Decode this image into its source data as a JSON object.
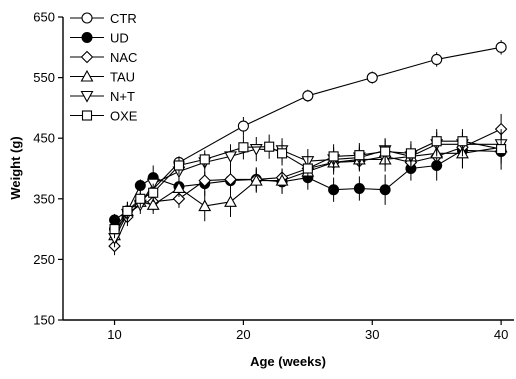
{
  "chart_data": {
    "type": "line",
    "title": "",
    "xlabel": "Age (weeks)",
    "ylabel": "Weight (g)",
    "xlim": [
      6,
      41
    ],
    "ylim": [
      150,
      650
    ],
    "xticks": [
      10,
      20,
      30,
      40
    ],
    "yticks": [
      150,
      250,
      350,
      450,
      550,
      650
    ],
    "grid": false,
    "legend_position": "top-left",
    "series": [
      {
        "name": "CTR",
        "marker": "circle-open",
        "x": [
          10,
          15,
          20,
          25,
          30,
          35,
          40
        ],
        "y": [
          300,
          410,
          470,
          520,
          550,
          580,
          600
        ],
        "err": [
          15,
          10,
          15,
          10,
          10,
          12,
          12
        ]
      },
      {
        "name": "UD",
        "marker": "circle-filled",
        "x": [
          10,
          11,
          12,
          13,
          15,
          17,
          19,
          21,
          23,
          25,
          27,
          29,
          31,
          33,
          35,
          37,
          40
        ],
        "y": [
          315,
          330,
          372,
          385,
          370,
          375,
          380,
          382,
          378,
          385,
          365,
          367,
          365,
          400,
          405,
          430,
          428
        ],
        "err": [
          10,
          15,
          10,
          20,
          15,
          20,
          20,
          20,
          20,
          20,
          20,
          20,
          25,
          20,
          25,
          30,
          30
        ]
      },
      {
        "name": "NAC",
        "marker": "diamond-open",
        "x": [
          10,
          11,
          12,
          13,
          15,
          17,
          19,
          21,
          23,
          25,
          27,
          29,
          31,
          33,
          35,
          37,
          40
        ],
        "y": [
          272,
          320,
          345,
          345,
          350,
          380,
          382,
          382,
          385,
          400,
          410,
          412,
          420,
          410,
          420,
          435,
          465
        ],
        "err": [
          15,
          15,
          15,
          15,
          15,
          15,
          15,
          15,
          15,
          20,
          15,
          15,
          15,
          15,
          20,
          20,
          25
        ]
      },
      {
        "name": "TAU",
        "marker": "triangle-up-open",
        "x": [
          10,
          11,
          12,
          13,
          15,
          17,
          19,
          21,
          23,
          25,
          27,
          29,
          31,
          33,
          35,
          37,
          40
        ],
        "y": [
          290,
          330,
          345,
          340,
          368,
          338,
          345,
          380,
          380,
          395,
          410,
          415,
          415,
          420,
          425,
          425,
          435
        ],
        "err": [
          15,
          15,
          15,
          15,
          15,
          25,
          25,
          20,
          20,
          20,
          20,
          20,
          20,
          20,
          20,
          25,
          25
        ]
      },
      {
        "name": "N+T",
        "marker": "triangle-down-open",
        "x": [
          10,
          11,
          12,
          13,
          15,
          17,
          19,
          21,
          23,
          25,
          27,
          29,
          31,
          33,
          35,
          37,
          40
        ],
        "y": [
          285,
          325,
          340,
          375,
          395,
          410,
          420,
          432,
          430,
          412,
          415,
          418,
          430,
          420,
          440,
          440,
          440
        ],
        "err": [
          15,
          15,
          15,
          15,
          15,
          15,
          20,
          20,
          20,
          20,
          20,
          20,
          20,
          20,
          20,
          20,
          25
        ]
      },
      {
        "name": "OXE",
        "marker": "square-open",
        "x": [
          10,
          11,
          12,
          13,
          15,
          17,
          20,
          22,
          23,
          25,
          27,
          29,
          31,
          33,
          35,
          37,
          40
        ],
        "y": [
          300,
          330,
          350,
          360,
          405,
          415,
          435,
          436,
          425,
          400,
          420,
          422,
          428,
          425,
          445,
          445,
          432
        ],
        "err": [
          15,
          15,
          15,
          15,
          15,
          15,
          20,
          20,
          20,
          20,
          20,
          20,
          20,
          20,
          20,
          20,
          25
        ]
      }
    ]
  }
}
